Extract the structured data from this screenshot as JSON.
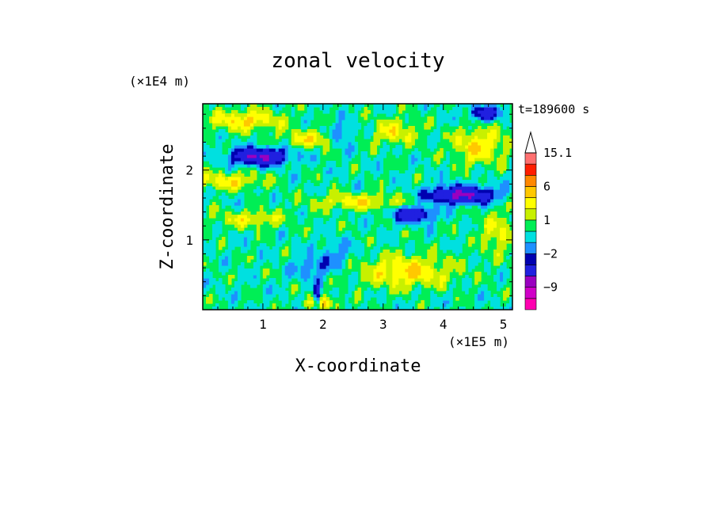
{
  "chart_data": {
    "type": "heatmap",
    "title": "zonal velocity",
    "xlabel": "X-coordinate",
    "ylabel": "Z-coordinate",
    "x_unit": "(×1E5 m)",
    "y_unit": "(×1E4 m)",
    "time_label": "t=189600 s",
    "xlim": [
      0,
      5.15
    ],
    "ylim": [
      0,
      2.95
    ],
    "x_ticks": [
      "1",
      "2",
      "3",
      "4",
      "5"
    ],
    "y_ticks": [
      "1",
      "2"
    ],
    "colorbar": {
      "labels": [
        "15.1",
        "6",
        "1",
        "−2",
        "−9"
      ],
      "label_levels": [
        15.1,
        6,
        1,
        -2,
        -9
      ],
      "levels": [
        -15,
        -12,
        -9,
        -6,
        -3,
        -2,
        -1,
        0,
        1,
        2,
        3,
        6,
        9,
        12,
        15.1
      ],
      "colors": [
        "#ff00b0",
        "#d000c8",
        "#9a00c0",
        "#2020e0",
        "#0000b0",
        "#1e90ff",
        "#00e0e0",
        "#00ee55",
        "#c8f000",
        "#ffff00",
        "#ffc800",
        "#ff8800",
        "#ff1e00",
        "#ff7070",
        "#ffb6c8"
      ],
      "extend_top": true
    },
    "field_features": [
      {
        "description": "strong westward jet",
        "x": 0.9,
        "z": 2.2,
        "value": -6
      },
      {
        "description": "westward jet",
        "x": 4.3,
        "z": 1.7,
        "value": -6
      },
      {
        "description": "westward core",
        "x": 3.5,
        "z": 1.35,
        "value": -5
      },
      {
        "description": "westward core",
        "x": 4.7,
        "z": 2.8,
        "value": -4
      },
      {
        "description": "eastward region",
        "x": 3.4,
        "z": 0.55,
        "value": 3
      },
      {
        "description": "eastward region",
        "x": 0.7,
        "z": 2.7,
        "value": 3
      },
      {
        "description": "eastward region",
        "x": 4.6,
        "z": 2.3,
        "value": 3
      }
    ]
  }
}
